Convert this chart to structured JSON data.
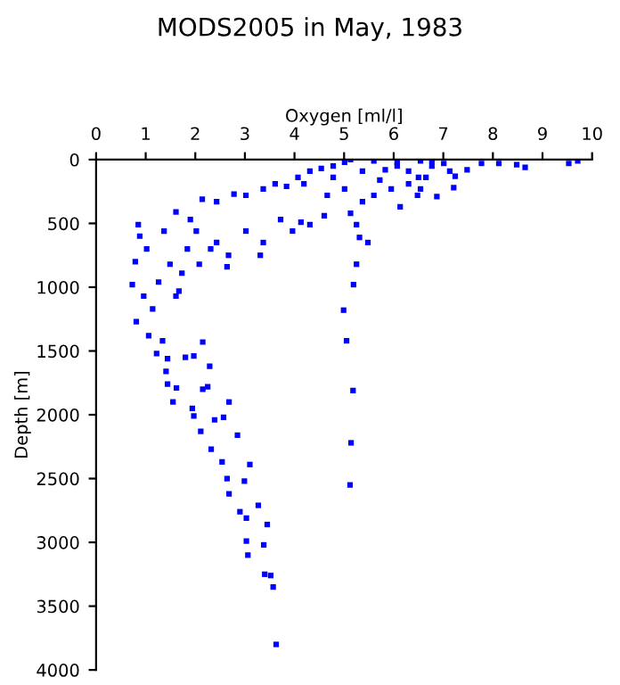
{
  "chart_data": {
    "type": "scatter",
    "title": "MODS2005 in May, 1983",
    "xlabel": "Oxygen [ml/l]",
    "ylabel": "Depth [m]",
    "xlim": [
      0,
      10
    ],
    "xticks": [
      0,
      1,
      2,
      3,
      4,
      5,
      6,
      7,
      8,
      9,
      10
    ],
    "ylim": [
      4000,
      0
    ],
    "yticks": [
      0,
      500,
      1000,
      1500,
      2000,
      2500,
      3000,
      3500,
      4000
    ],
    "marker": "square",
    "grid": false,
    "series": [
      {
        "color": "#0000ff",
        "x": [
          4.99,
          5.05,
          5.18,
          5.14,
          5.12,
          0.81,
          1.06,
          1.22,
          1.34,
          1.44,
          1.41,
          1.44,
          1.62,
          1.55,
          1.8,
          1.97,
          2.15,
          2.29,
          2.15,
          2.25,
          2.68,
          1.94,
          1.97,
          2.11,
          2.39,
          2.57,
          2.85,
          2.32,
          2.54,
          3.1,
          2.64,
          2.99,
          2.68,
          3.27,
          2.9,
          3.03,
          3.45,
          3.03,
          3.38,
          3.06,
          3.4,
          3.52,
          3.57,
          3.63,
          9.71,
          9.53,
          8.65,
          8.48,
          8.12,
          7.77,
          7.48,
          7.24,
          7.21,
          6.87,
          6.48,
          6.5,
          7.01,
          4.78,
          5.13,
          5.6,
          6.07,
          6.54,
          6.77,
          5.37,
          5.83,
          6.3,
          6.65,
          4.54,
          4.31,
          4.07,
          4.19,
          3.84,
          3.61,
          3.37,
          3.02,
          2.78,
          2.43,
          2.14,
          1.9,
          1.61,
          1.37,
          0.85,
          0.88,
          0.79,
          0.73,
          0.96,
          1.14,
          1.61,
          1.67,
          1.26,
          1.49,
          1.84,
          2.02,
          2.31,
          2.67,
          2.43,
          3.02,
          3.37,
          3.72,
          3.96,
          4.31,
          4.6,
          4.66,
          5.01,
          5.13,
          5.25,
          5.31,
          5.48,
          5.37,
          5.6,
          5.95,
          6.13,
          6.3,
          5.25,
          5.19,
          1.73,
          1.02,
          2.08,
          2.64,
          3.31,
          4.13,
          4.78,
          5.72,
          6.54,
          7.13,
          6.07,
          5.01,
          6.77
        ],
        "values": [
          1180,
          1420,
          1810,
          2220,
          2550,
          1270,
          1380,
          1520,
          1420,
          1560,
          1660,
          1760,
          1790,
          1900,
          1550,
          1540,
          1430,
          1620,
          1800,
          1780,
          1900,
          1950,
          2010,
          2130,
          2040,
          2020,
          2160,
          2270,
          2370,
          2390,
          2500,
          2520,
          2620,
          2710,
          2760,
          2810,
          2860,
          2990,
          3020,
          3100,
          3250,
          3260,
          3350,
          3800,
          10,
          30,
          60,
          40,
          30,
          30,
          80,
          130,
          220,
          290,
          280,
          140,
          30,
          50,
          0,
          10,
          20,
          10,
          50,
          90,
          80,
          90,
          140,
          70,
          90,
          140,
          190,
          210,
          190,
          230,
          280,
          270,
          330,
          310,
          470,
          410,
          560,
          510,
          600,
          800,
          980,
          1070,
          1170,
          1070,
          1030,
          960,
          820,
          700,
          560,
          700,
          750,
          650,
          560,
          650,
          470,
          560,
          510,
          440,
          280,
          230,
          420,
          510,
          610,
          650,
          330,
          280,
          230,
          370,
          190,
          820,
          980,
          890,
          700,
          820,
          840,
          750,
          490,
          140,
          160,
          230,
          90,
          50,
          20,
          10
        ]
      }
    ]
  }
}
